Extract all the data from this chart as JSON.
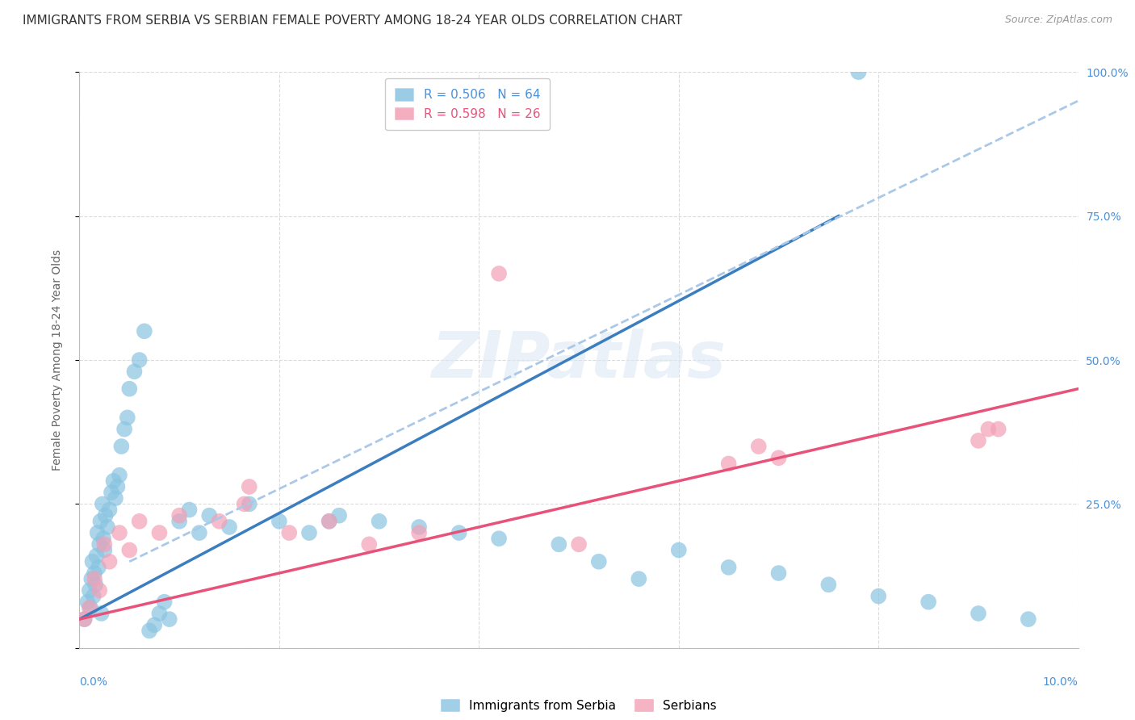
{
  "title": "IMMIGRANTS FROM SERBIA VS SERBIAN FEMALE POVERTY AMONG 18-24 YEAR OLDS CORRELATION CHART",
  "source": "Source: ZipAtlas.com",
  "ylabel": "Female Poverty Among 18-24 Year Olds",
  "xlim": [
    0.0,
    10.0
  ],
  "ylim": [
    0.0,
    100.0
  ],
  "blue_R": 0.506,
  "blue_N": 64,
  "pink_R": 0.598,
  "pink_N": 26,
  "watermark": "ZIPatlas",
  "blue_color": "#89c4e1",
  "pink_color": "#f4a0b5",
  "blue_line_color": "#3a7ebf",
  "pink_line_color": "#e8527a",
  "dashed_line_color": "#aac8e8",
  "legend_blue_label": "Immigrants from Serbia",
  "legend_pink_label": "Serbians",
  "blue_scatter_x": [
    0.05,
    0.08,
    0.1,
    0.11,
    0.12,
    0.13,
    0.14,
    0.15,
    0.16,
    0.17,
    0.18,
    0.19,
    0.2,
    0.21,
    0.22,
    0.23,
    0.24,
    0.25,
    0.26,
    0.28,
    0.3,
    0.32,
    0.34,
    0.36,
    0.38,
    0.4,
    0.42,
    0.45,
    0.48,
    0.5,
    0.55,
    0.6,
    0.65,
    0.7,
    0.75,
    0.8,
    0.85,
    0.9,
    1.0,
    1.1,
    1.2,
    1.3,
    1.5,
    1.7,
    2.0,
    2.3,
    2.6,
    3.0,
    3.4,
    3.8,
    4.2,
    4.8,
    5.2,
    5.6,
    6.0,
    6.5,
    7.0,
    7.5,
    8.0,
    8.5,
    9.0,
    9.5,
    2.5,
    7.8
  ],
  "blue_scatter_y": [
    5.0,
    8.0,
    10.0,
    7.0,
    12.0,
    15.0,
    9.0,
    13.0,
    11.0,
    16.0,
    20.0,
    14.0,
    18.0,
    22.0,
    6.0,
    25.0,
    19.0,
    17.0,
    23.0,
    21.0,
    24.0,
    27.0,
    29.0,
    26.0,
    28.0,
    30.0,
    35.0,
    38.0,
    40.0,
    45.0,
    48.0,
    50.0,
    55.0,
    3.0,
    4.0,
    6.0,
    8.0,
    5.0,
    22.0,
    24.0,
    20.0,
    23.0,
    21.0,
    25.0,
    22.0,
    20.0,
    23.0,
    22.0,
    21.0,
    20.0,
    19.0,
    18.0,
    15.0,
    12.0,
    17.0,
    14.0,
    13.0,
    11.0,
    9.0,
    8.0,
    6.0,
    5.0,
    22.0,
    100.0
  ],
  "pink_scatter_x": [
    0.05,
    0.1,
    0.15,
    0.2,
    0.25,
    0.3,
    0.4,
    0.5,
    0.6,
    0.8,
    1.0,
    1.4,
    1.65,
    1.7,
    2.1,
    2.5,
    2.9,
    3.4,
    4.2,
    5.0,
    6.5,
    6.8,
    7.0,
    9.0,
    9.1,
    9.2
  ],
  "pink_scatter_y": [
    5.0,
    7.0,
    12.0,
    10.0,
    18.0,
    15.0,
    20.0,
    17.0,
    22.0,
    20.0,
    23.0,
    22.0,
    25.0,
    28.0,
    20.0,
    22.0,
    18.0,
    20.0,
    65.0,
    18.0,
    32.0,
    35.0,
    33.0,
    36.0,
    38.0,
    38.0
  ],
  "blue_trendline_x": [
    0.0,
    7.6
  ],
  "blue_trendline_y": [
    5.0,
    75.0
  ],
  "pink_trendline_x": [
    0.0,
    10.0
  ],
  "pink_trendline_y": [
    5.0,
    45.0
  ],
  "dashed_trendline_x": [
    0.5,
    10.0
  ],
  "dashed_trendline_y": [
    15.0,
    95.0
  ],
  "background_color": "#ffffff",
  "grid_color": "#d8d8d8",
  "title_fontsize": 11,
  "axis_label_fontsize": 10,
  "tick_fontsize": 10,
  "legend_fontsize": 11
}
